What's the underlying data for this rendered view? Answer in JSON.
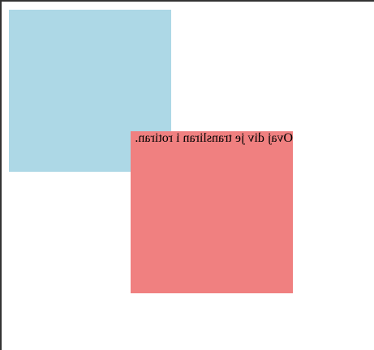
{
  "page": {
    "frame_border_color": "#333333"
  },
  "boxes": {
    "blue": {
      "color": "#add8e6"
    },
    "red": {
      "color": "#f08080",
      "text": "Ovaj div je transliran i rotiran."
    }
  }
}
